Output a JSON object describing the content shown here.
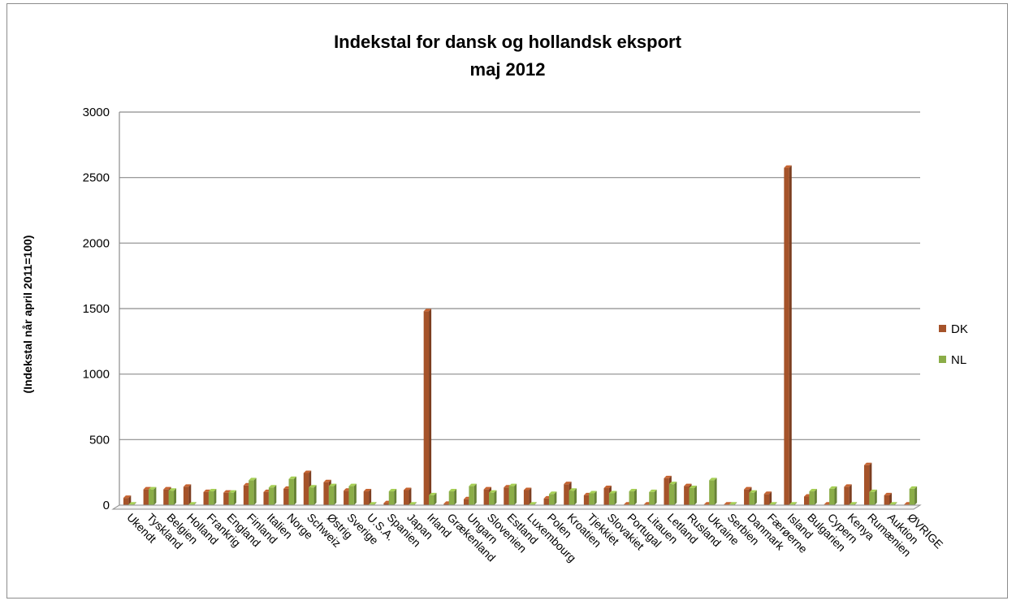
{
  "chart_data": {
    "type": "bar",
    "title": "Indekstal for dansk og hollandsk eksport",
    "subtitle": "maj 2012",
    "xlabel": "",
    "ylabel": "(Indekstal når april 2011=100)",
    "ylim": [
      0,
      3000
    ],
    "yticks": [
      "0",
      "500",
      "1000",
      "1500",
      "2000",
      "2500",
      "3000"
    ],
    "grid": true,
    "legend_position": "right",
    "categories": [
      "Ukendt",
      "Tyskland",
      "Belgien",
      "Holland",
      "Frankrig",
      "England",
      "Finland",
      "Italien",
      "Norge",
      "Schweiz",
      "Østrig",
      "Sverige",
      "U.S.A.",
      "Spanien",
      "Japan",
      "Irland",
      "Grækenland",
      "Ungarn",
      "Slovenien",
      "Estland",
      "Luxembourg",
      "Polen",
      "Kroatien",
      "Tjekkiet",
      "Slovakiet",
      "Portugal",
      "Litauen",
      "Letland",
      "Rusland",
      "Ukraine",
      "Serbien",
      "Danmark",
      "Færøerne",
      "Island",
      "Bulgarien",
      "Cypern",
      "Kenya",
      "Rumænien",
      "Auktion",
      "ØVRIGE"
    ],
    "series": [
      {
        "name": "DK",
        "color": "#a5532a",
        "values": [
          55,
          120,
          120,
          140,
          100,
          95,
          150,
          100,
          125,
          245,
          175,
          110,
          105,
          15,
          115,
          1480,
          10,
          45,
          120,
          135,
          115,
          50,
          160,
          75,
          130,
          5,
          5,
          205,
          145,
          5,
          5,
          120,
          85,
          2575,
          65,
          5,
          140,
          305,
          75,
          5
        ]
      },
      {
        "name": "NL",
        "color": "#8bad48",
        "values": [
          5,
          120,
          110,
          5,
          105,
          95,
          190,
          135,
          200,
          135,
          145,
          145,
          5,
          105,
          5,
          75,
          105,
          145,
          95,
          145,
          5,
          85,
          110,
          90,
          90,
          105,
          100,
          160,
          130,
          190,
          5,
          95,
          5,
          5,
          105,
          125,
          5,
          100,
          5,
          125
        ]
      }
    ]
  }
}
